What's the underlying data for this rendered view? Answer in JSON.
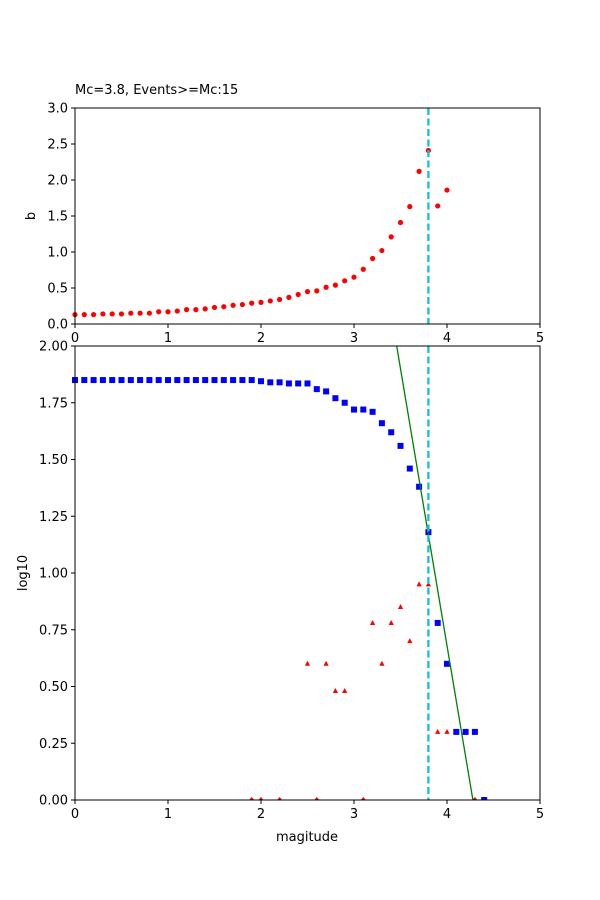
{
  "chart_data": [
    {
      "type": "scatter",
      "title": "Mc=3.8, Events>=Mc:15",
      "xlabel": "",
      "ylabel": "b",
      "xlim": [
        0,
        5
      ],
      "ylim": [
        0,
        3.0
      ],
      "xticks": [
        "0",
        "1",
        "2",
        "3",
        "4",
        "5"
      ],
      "yticks": [
        "0.0",
        "0.5",
        "1.0",
        "1.5",
        "2.0",
        "2.5",
        "3.0"
      ],
      "grid": false,
      "vline": {
        "x": 3.8,
        "color": "#17becf",
        "style": "dashed"
      },
      "series": [
        {
          "color": "#ff0000",
          "marker": "circle",
          "x": [
            0.0,
            0.1,
            0.2,
            0.3,
            0.4,
            0.5,
            0.6,
            0.7,
            0.8,
            0.9,
            1.0,
            1.1,
            1.2,
            1.3,
            1.4,
            1.5,
            1.6,
            1.7,
            1.8,
            1.9,
            2.0,
            2.1,
            2.2,
            2.3,
            2.4,
            2.5,
            2.6,
            2.7,
            2.8,
            2.9,
            3.0,
            3.1,
            3.2,
            3.3,
            3.4,
            3.5,
            3.6,
            3.7,
            3.8,
            3.9,
            4.0
          ],
          "y": [
            0.13,
            0.13,
            0.13,
            0.14,
            0.14,
            0.14,
            0.15,
            0.15,
            0.15,
            0.17,
            0.17,
            0.18,
            0.2,
            0.2,
            0.21,
            0.23,
            0.24,
            0.26,
            0.27,
            0.29,
            0.3,
            0.32,
            0.34,
            0.37,
            0.41,
            0.45,
            0.46,
            0.51,
            0.54,
            0.6,
            0.65,
            0.76,
            0.91,
            1.02,
            1.21,
            1.41,
            1.63,
            2.12,
            2.41,
            1.64,
            1.86
          ]
        }
      ]
    },
    {
      "type": "scatter",
      "title": "",
      "xlabel": "magitude",
      "ylabel": "log10",
      "xlim": [
        0,
        5
      ],
      "ylim": [
        0,
        2.0
      ],
      "xticks": [
        "0",
        "1",
        "2",
        "3",
        "4",
        "5"
      ],
      "yticks": [
        "0.00",
        "0.25",
        "0.50",
        "0.75",
        "1.00",
        "1.25",
        "1.50",
        "1.75",
        "2.00"
      ],
      "grid": false,
      "vline": {
        "x": 3.8,
        "color": "#17becf",
        "style": "dashed"
      },
      "fit_line": {
        "intercept": 10.44,
        "slope": -2.44,
        "color": "#008000"
      },
      "series": [
        {
          "color": "#0000ff",
          "marker": "square",
          "x": [
            0.0,
            0.1,
            0.2,
            0.3,
            0.4,
            0.5,
            0.6,
            0.7,
            0.8,
            0.9,
            1.0,
            1.1,
            1.2,
            1.3,
            1.4,
            1.5,
            1.6,
            1.7,
            1.8,
            1.9,
            2.0,
            2.1,
            2.2,
            2.3,
            2.4,
            2.5,
            2.6,
            2.7,
            2.8,
            2.9,
            3.0,
            3.1,
            3.2,
            3.3,
            3.4,
            3.5,
            3.6,
            3.7,
            3.8,
            3.9,
            4.0,
            4.1,
            4.2,
            4.3,
            4.4
          ],
          "y": [
            1.85,
            1.85,
            1.85,
            1.85,
            1.85,
            1.85,
            1.85,
            1.85,
            1.85,
            1.85,
            1.85,
            1.85,
            1.85,
            1.85,
            1.85,
            1.85,
            1.85,
            1.85,
            1.85,
            1.85,
            1.845,
            1.84,
            1.84,
            1.835,
            1.835,
            1.835,
            1.81,
            1.8,
            1.77,
            1.75,
            1.72,
            1.72,
            1.71,
            1.66,
            1.62,
            1.56,
            1.46,
            1.38,
            1.18,
            0.78,
            0.6,
            0.3,
            0.3,
            0.3,
            0.0
          ]
        },
        {
          "color": "#ff0000",
          "marker": "triangle",
          "x": [
            1.9,
            2.0,
            2.2,
            2.5,
            2.6,
            2.7,
            2.8,
            2.9,
            3.1,
            3.2,
            3.3,
            3.4,
            3.5,
            3.6,
            3.7,
            3.8,
            3.9,
            4.0,
            4.3
          ],
          "y": [
            0,
            0,
            0,
            0.6,
            0,
            0.6,
            0.48,
            0.48,
            0,
            0.78,
            0.6,
            0.78,
            0.85,
            0.7,
            0.95,
            0.95,
            0.3,
            0.3,
            0
          ]
        }
      ]
    }
  ]
}
